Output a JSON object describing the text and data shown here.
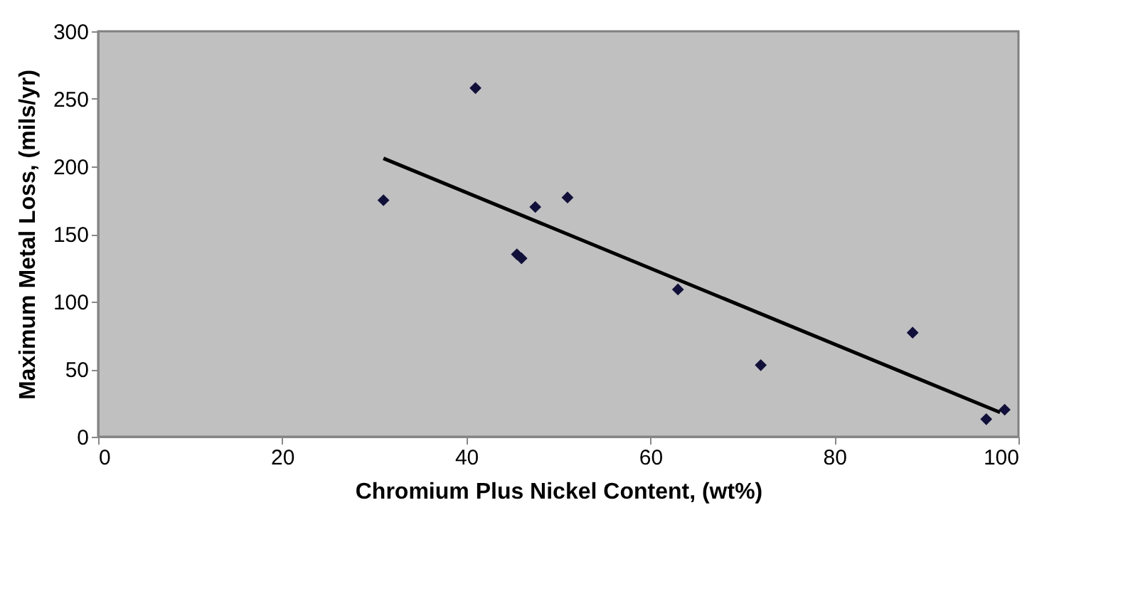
{
  "chart_data": {
    "type": "scatter",
    "xlabel": "Chromium Plus Nickel Content, (wt%)",
    "ylabel": "Maximum Metal Loss, (mils/yr)",
    "xlim": [
      0,
      100
    ],
    "xticks": [
      0,
      20,
      40,
      60,
      80,
      100
    ],
    "ylim": [
      0,
      300
    ],
    "yticks": [
      0,
      50,
      100,
      150,
      200,
      250,
      300
    ],
    "grid": false,
    "series": [
      {
        "marker": "diamond",
        "color": "#10103a",
        "x": [
          31,
          41,
          45.5,
          46,
          47.5,
          51,
          63,
          72,
          88.5,
          96.5,
          98.5
        ],
        "values": [
          175,
          258,
          135,
          132,
          170,
          177,
          109,
          53,
          77,
          13,
          20
        ]
      },
      {
        "type": "line",
        "marker": "none",
        "color": "#000000",
        "x": [
          31,
          98
        ],
        "values": [
          206,
          18
        ],
        "line_style": "solid"
      }
    ]
  }
}
